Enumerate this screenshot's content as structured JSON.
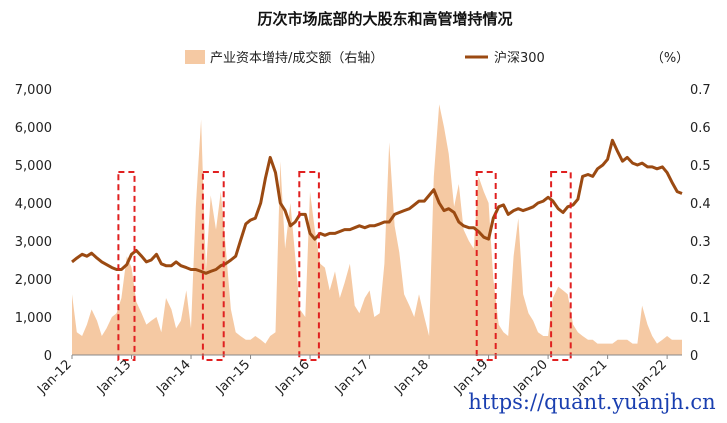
{
  "chart_data": {
    "type": "bar+line",
    "title": "历次市场底部的大股东和高管增持情况",
    "watermark": "https://quant.yuanjh.cn",
    "left_axis": {
      "ticks": [
        "0",
        "1,000",
        "2,000",
        "3,000",
        "4,000",
        "5,000",
        "6,000",
        "7,000"
      ],
      "ylim": [
        0,
        7000
      ]
    },
    "right_axis": {
      "ticks": [
        "0",
        "0.1",
        "0.2",
        "0.3",
        "0.4",
        "0.5",
        "0.6",
        "0.7"
      ],
      "ylim": [
        0,
        0.7
      ],
      "unit": "（%）"
    },
    "x_axis": {
      "ticks": [
        "Jan-12",
        "Jan-13",
        "Jan-14",
        "Jan-15",
        "Jan-16",
        "Jan-17",
        "Jan-18",
        "Jan-19",
        "Jan-20",
        "Jan-21",
        "Jan-22"
      ],
      "tick_dates": [
        2012.0,
        2013.0,
        2014.0,
        2015.0,
        2016.0,
        2017.0,
        2018.0,
        2019.0,
        2020.0,
        2021.0,
        2022.0
      ],
      "xlim": [
        2012.0,
        2022.25
      ]
    },
    "series": [
      {
        "name": "产业资本增持/成交额（右轴）",
        "type": "area",
        "axis": "right",
        "color": "#f5c9a3",
        "x": [
          2012.0,
          2012.08,
          2012.17,
          2012.25,
          2012.33,
          2012.42,
          2012.5,
          2012.58,
          2012.67,
          2012.75,
          2012.83,
          2012.92,
          2013.0,
          2013.08,
          2013.17,
          2013.25,
          2013.33,
          2013.42,
          2013.5,
          2013.58,
          2013.67,
          2013.75,
          2013.83,
          2013.92,
          2014.0,
          2014.08,
          2014.17,
          2014.25,
          2014.33,
          2014.42,
          2014.5,
          2014.58,
          2014.67,
          2014.75,
          2014.83,
          2014.92,
          2015.0,
          2015.08,
          2015.17,
          2015.25,
          2015.33,
          2015.42,
          2015.5,
          2015.58,
          2015.67,
          2015.75,
          2015.83,
          2015.92,
          2016.0,
          2016.08,
          2016.17,
          2016.25,
          2016.33,
          2016.42,
          2016.5,
          2016.58,
          2016.67,
          2016.75,
          2016.83,
          2016.92,
          2017.0,
          2017.08,
          2017.17,
          2017.25,
          2017.33,
          2017.42,
          2017.5,
          2017.58,
          2017.67,
          2017.75,
          2017.83,
          2017.92,
          2018.0,
          2018.08,
          2018.17,
          2018.25,
          2018.33,
          2018.42,
          2018.5,
          2018.58,
          2018.67,
          2018.75,
          2018.83,
          2018.92,
          2019.0,
          2019.08,
          2019.17,
          2019.25,
          2019.33,
          2019.42,
          2019.5,
          2019.58,
          2019.67,
          2019.75,
          2019.83,
          2019.92,
          2020.0,
          2020.08,
          2020.17,
          2020.25,
          2020.33,
          2020.42,
          2020.5,
          2020.58,
          2020.67,
          2020.75,
          2020.83,
          2020.92,
          2021.0,
          2021.08,
          2021.17,
          2021.25,
          2021.33,
          2021.42,
          2021.5,
          2021.58,
          2021.67,
          2021.75,
          2021.83,
          2021.92,
          2022.0,
          2022.08,
          2022.17,
          2022.25
        ],
        "values": [
          0.16,
          0.06,
          0.05,
          0.08,
          0.12,
          0.09,
          0.05,
          0.07,
          0.1,
          0.11,
          0.15,
          0.26,
          0.23,
          0.14,
          0.11,
          0.08,
          0.09,
          0.1,
          0.06,
          0.15,
          0.12,
          0.07,
          0.09,
          0.17,
          0.07,
          0.39,
          0.62,
          0.22,
          0.42,
          0.33,
          0.43,
          0.29,
          0.12,
          0.06,
          0.05,
          0.04,
          0.04,
          0.05,
          0.04,
          0.03,
          0.05,
          0.06,
          0.51,
          0.28,
          0.4,
          0.26,
          0.12,
          0.1,
          0.43,
          0.33,
          0.24,
          0.23,
          0.17,
          0.22,
          0.15,
          0.19,
          0.24,
          0.13,
          0.11,
          0.15,
          0.17,
          0.1,
          0.11,
          0.24,
          0.56,
          0.34,
          0.27,
          0.16,
          0.13,
          0.1,
          0.16,
          0.1,
          0.05,
          0.47,
          0.66,
          0.6,
          0.53,
          0.39,
          0.45,
          0.33,
          0.3,
          0.28,
          0.47,
          0.43,
          0.4,
          0.2,
          0.08,
          0.06,
          0.05,
          0.26,
          0.36,
          0.16,
          0.11,
          0.09,
          0.06,
          0.05,
          0.05,
          0.15,
          0.18,
          0.17,
          0.16,
          0.08,
          0.06,
          0.05,
          0.04,
          0.04,
          0.03,
          0.03,
          0.03,
          0.03,
          0.04,
          0.04,
          0.04,
          0.03,
          0.03,
          0.13,
          0.08,
          0.05,
          0.03,
          0.04,
          0.05,
          0.04,
          0.04,
          0.04
        ]
      },
      {
        "name": "沪深300",
        "type": "line",
        "axis": "left",
        "color": "#9b4a12",
        "x": [
          2012.0,
          2012.08,
          2012.17,
          2012.25,
          2012.33,
          2012.42,
          2012.5,
          2012.58,
          2012.67,
          2012.75,
          2012.83,
          2012.92,
          2013.0,
          2013.08,
          2013.17,
          2013.25,
          2013.33,
          2013.42,
          2013.5,
          2013.58,
          2013.67,
          2013.75,
          2013.83,
          2013.92,
          2014.0,
          2014.08,
          2014.17,
          2014.25,
          2014.33,
          2014.42,
          2014.5,
          2014.58,
          2014.67,
          2014.75,
          2014.83,
          2014.92,
          2015.0,
          2015.08,
          2015.17,
          2015.25,
          2015.33,
          2015.42,
          2015.5,
          2015.58,
          2015.67,
          2015.75,
          2015.83,
          2015.92,
          2016.0,
          2016.08,
          2016.17,
          2016.25,
          2016.33,
          2016.42,
          2016.5,
          2016.58,
          2016.67,
          2016.75,
          2016.83,
          2016.92,
          2017.0,
          2017.08,
          2017.17,
          2017.25,
          2017.33,
          2017.42,
          2017.5,
          2017.58,
          2017.67,
          2017.75,
          2017.83,
          2017.92,
          2018.0,
          2018.08,
          2018.17,
          2018.25,
          2018.33,
          2018.42,
          2018.5,
          2018.58,
          2018.67,
          2018.75,
          2018.83,
          2018.92,
          2019.0,
          2019.08,
          2019.17,
          2019.25,
          2019.33,
          2019.42,
          2019.5,
          2019.58,
          2019.67,
          2019.75,
          2019.83,
          2019.92,
          2020.0,
          2020.08,
          2020.17,
          2020.25,
          2020.33,
          2020.42,
          2020.5,
          2020.58,
          2020.67,
          2020.75,
          2020.83,
          2020.92,
          2021.0,
          2021.08,
          2021.17,
          2021.25,
          2021.33,
          2021.42,
          2021.5,
          2021.58,
          2021.67,
          2021.75,
          2021.83,
          2021.92,
          2022.0,
          2022.08,
          2022.17,
          2022.25
        ],
        "values": [
          2450,
          2550,
          2650,
          2600,
          2680,
          2550,
          2450,
          2380,
          2300,
          2250,
          2250,
          2380,
          2650,
          2750,
          2600,
          2450,
          2500,
          2650,
          2400,
          2350,
          2350,
          2450,
          2350,
          2300,
          2250,
          2250,
          2200,
          2150,
          2200,
          2250,
          2350,
          2400,
          2500,
          2600,
          3000,
          3450,
          3550,
          3600,
          4000,
          4650,
          5200,
          4800,
          4000,
          3800,
          3400,
          3500,
          3700,
          3700,
          3200,
          3050,
          3200,
          3150,
          3200,
          3200,
          3250,
          3300,
          3300,
          3350,
          3400,
          3350,
          3400,
          3400,
          3450,
          3500,
          3500,
          3700,
          3750,
          3800,
          3850,
          3950,
          4050,
          4050,
          4200,
          4350,
          4000,
          3800,
          3850,
          3750,
          3500,
          3400,
          3350,
          3350,
          3250,
          3100,
          3050,
          3600,
          3900,
          3950,
          3700,
          3800,
          3850,
          3800,
          3850,
          3900,
          4000,
          4050,
          4150,
          4050,
          3850,
          3750,
          3900,
          3950,
          4100,
          4700,
          4750,
          4700,
          4900,
          5000,
          5150,
          5650,
          5350,
          5100,
          5200,
          5050,
          5000,
          5050,
          4950,
          4950,
          4900,
          4950,
          4800,
          4550,
          4300,
          4250
        ]
      }
    ],
    "highlight_periods": [
      {
        "from": 2012.78,
        "to": 2013.05
      },
      {
        "from": 2014.2,
        "to": 2014.55
      },
      {
        "from": 2015.82,
        "to": 2016.15
      },
      {
        "from": 2018.8,
        "to": 2019.12
      },
      {
        "from": 2020.05,
        "to": 2020.38
      }
    ],
    "highlight_color": "#e02020",
    "grid": false,
    "legend_position": "top"
  }
}
